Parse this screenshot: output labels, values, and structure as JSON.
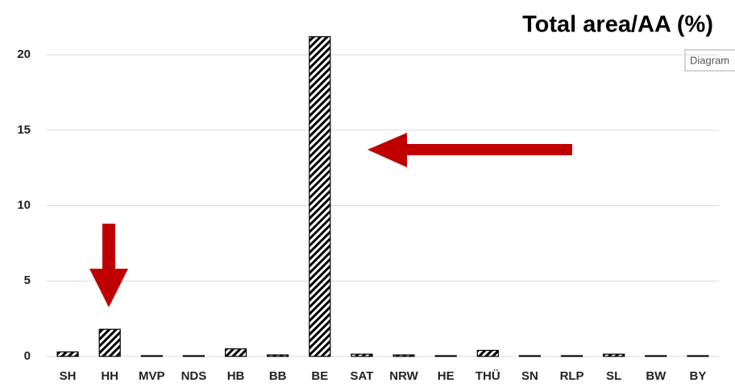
{
  "chart_data": {
    "type": "bar",
    "title": "Total area/AA (%)",
    "tooltip": "Diagram",
    "categories": [
      "SH",
      "HH",
      "MVP",
      "NDS",
      "HB",
      "BB",
      "BE",
      "SAT",
      "NRW",
      "HE",
      "THÜ",
      "SN",
      "RLP",
      "SL",
      "BW",
      "BY"
    ],
    "values": [
      0.3,
      1.8,
      0.05,
      0.05,
      0.5,
      0.1,
      21.2,
      0.15,
      0.1,
      0.05,
      0.4,
      0.05,
      0.05,
      0.15,
      0.05,
      0.05
    ],
    "color": "#000000",
    "ylim": [
      0,
      21.5
    ],
    "yticks": [
      0,
      5,
      10,
      15,
      20
    ],
    "grid": true
  }
}
